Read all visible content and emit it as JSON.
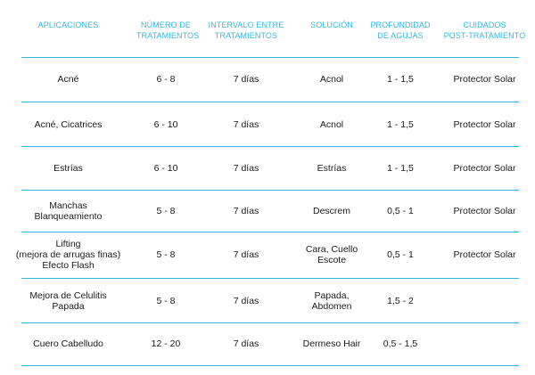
{
  "table": {
    "headers": [
      "APLICACIONES",
      "NÚMERO DE\nTRATAMIENTOS",
      "INTERVALO ENTRE\nTRATAMIENTOS",
      "SOLUCIÓN",
      "PROFUNDIDAD\nDE AGUJAS",
      "CUIDADOS\nPOST-TRATAMIENTO"
    ],
    "rows": [
      [
        "Acné",
        "6 - 8",
        "7 días",
        "Acnol",
        "1 - 1,5",
        "Protector Solar"
      ],
      [
        "Acné, Cicatrices",
        "6 - 10",
        "7 días",
        "Acnol",
        "1 - 1,5",
        "Protector Solar"
      ],
      [
        "Estrías",
        "6 - 10",
        "7 días",
        "Estrías",
        "1 - 1,5",
        "Protector Solar"
      ],
      [
        "Manchas\nBlanqueamiento",
        "5 - 8",
        "7 días",
        "Descrem",
        "0,5 - 1",
        "Protector Solar"
      ],
      [
        "Lifting\n(mejora de arrugas finas)\nEfecto Flash",
        "5 - 8",
        "7 días",
        "Cara, Cuello\nEscote",
        "0,5 - 1",
        "Protector Solar"
      ],
      [
        "Mejora de Celulitis\nPapada",
        "5 - 8",
        "7 días",
        "Papada,\nAbdomen",
        "1,5 - 2",
        ""
      ],
      [
        "Cuero Cabelludo",
        "12 - 20",
        "7 días",
        "Dermeso Hair",
        "0,5 - 1,5",
        ""
      ]
    ]
  },
  "colors": {
    "accent": "#35b7e1",
    "text": "#1a1a1a"
  }
}
